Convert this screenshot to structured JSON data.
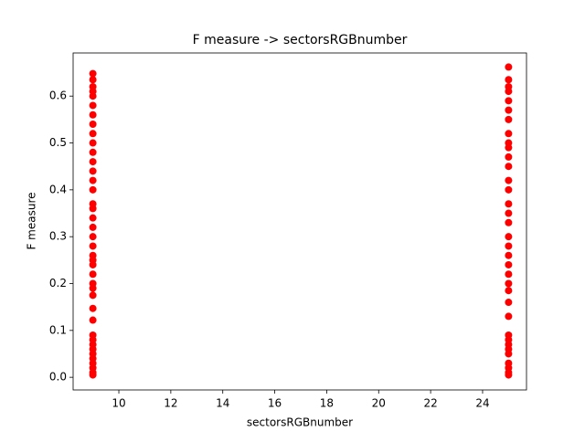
{
  "chart_data": {
    "type": "scatter",
    "title": "F measure -> sectorsRGBnumber",
    "xlabel": "sectorsRGBnumber",
    "ylabel": "F measure",
    "color": "#ff0000",
    "x": [
      9,
      9,
      9,
      9,
      9,
      9,
      9,
      9,
      9,
      9,
      9,
      9,
      9,
      9,
      9,
      9,
      9,
      9,
      9,
      9,
      9,
      9,
      9,
      9,
      9,
      9,
      9,
      9,
      9,
      9,
      9,
      9,
      9,
      9,
      9,
      9,
      9,
      9,
      9,
      9,
      25,
      25,
      25,
      25,
      25,
      25,
      25,
      25,
      25,
      25,
      25,
      25,
      25,
      25,
      25,
      25,
      25,
      25,
      25,
      25,
      25,
      25,
      25,
      25,
      25,
      25,
      25,
      25,
      25,
      25,
      25,
      25,
      25,
      25,
      25
    ],
    "values": [
      0.005,
      0.01,
      0.02,
      0.03,
      0.04,
      0.05,
      0.06,
      0.07,
      0.08,
      0.09,
      0.122,
      0.147,
      0.175,
      0.19,
      0.2,
      0.22,
      0.24,
      0.25,
      0.26,
      0.28,
      0.3,
      0.32,
      0.34,
      0.36,
      0.37,
      0.4,
      0.42,
      0.44,
      0.46,
      0.48,
      0.5,
      0.52,
      0.54,
      0.56,
      0.58,
      0.6,
      0.61,
      0.62,
      0.635,
      0.648,
      0.005,
      0.01,
      0.02,
      0.03,
      0.05,
      0.06,
      0.07,
      0.08,
      0.09,
      0.13,
      0.16,
      0.185,
      0.2,
      0.22,
      0.24,
      0.26,
      0.28,
      0.3,
      0.33,
      0.35,
      0.37,
      0.4,
      0.42,
      0.45,
      0.47,
      0.49,
      0.5,
      0.52,
      0.55,
      0.57,
      0.59,
      0.61,
      0.62,
      0.635,
      0.662
    ],
    "xlim": [
      8.24,
      25.69
    ],
    "ylim": [
      -0.027,
      0.692
    ],
    "xticks": [
      10,
      12,
      14,
      16,
      18,
      20,
      22,
      24
    ],
    "yticks": [
      {
        "value": 0,
        "label": "0.0"
      },
      0.1,
      0.2,
      0.3,
      0.4,
      0.5,
      0.6
    ]
  }
}
